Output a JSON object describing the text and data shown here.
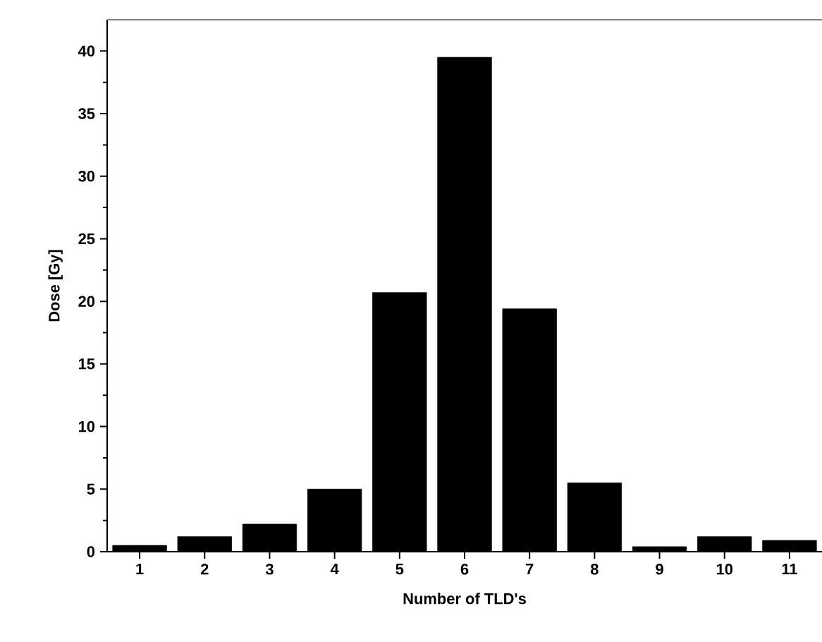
{
  "chart_data": {
    "type": "bar",
    "xlabel": "Number of TLD's",
    "ylabel": "Dose [Gy]",
    "categories": [
      "1",
      "2",
      "3",
      "4",
      "5",
      "6",
      "7",
      "8",
      "9",
      "10",
      "11"
    ],
    "values": [
      0.5,
      1.2,
      2.2,
      5.0,
      20.7,
      39.5,
      19.4,
      5.5,
      0.4,
      1.2,
      0.9
    ],
    "color": "#000000",
    "ylim": [
      0,
      42.5
    ],
    "yticks": [
      0,
      5,
      10,
      15,
      20,
      25,
      30,
      35,
      40
    ],
    "grid": false
  }
}
